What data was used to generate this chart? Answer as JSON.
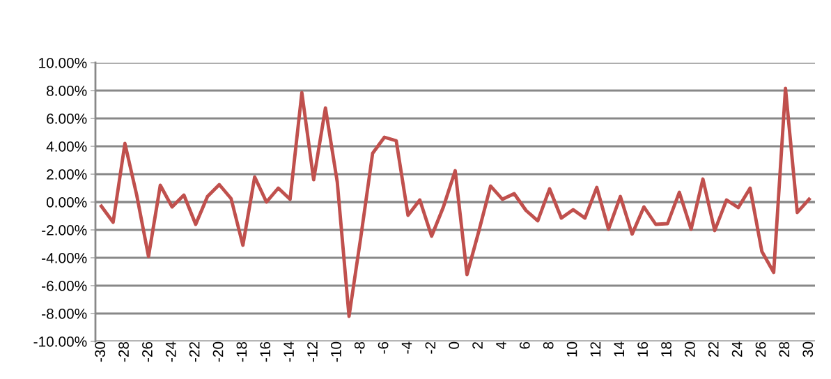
{
  "chart_data": {
    "type": "line",
    "categories": [
      "-30",
      null,
      "-28",
      null,
      "-26",
      null,
      "-24",
      null,
      "-22",
      null,
      "-20",
      null,
      "-18",
      null,
      "-16",
      null,
      "-14",
      null,
      "-12",
      null,
      "-10",
      null,
      "-8",
      null,
      "-6",
      null,
      "-4",
      null,
      "-2",
      null,
      "0",
      null,
      "2",
      null,
      "4",
      null,
      "6",
      null,
      "8",
      null,
      "10",
      null,
      "12",
      null,
      "14",
      null,
      "16",
      null,
      "18",
      null,
      "20",
      null,
      "22",
      null,
      "24",
      null,
      "26",
      null,
      "28",
      null,
      "30"
    ],
    "series": [
      {
        "color": "#c0504d",
        "values": [
          -0.3,
          -1.45,
          4.2,
          0.5,
          -3.9,
          1.2,
          -0.35,
          0.5,
          -1.6,
          0.4,
          1.25,
          0.25,
          -3.1,
          1.8,
          0.0,
          1.0,
          0.2,
          7.85,
          1.6,
          6.75,
          1.45,
          -8.2,
          -2.5,
          3.5,
          4.65,
          4.4,
          -0.95,
          0.15,
          -2.45,
          -0.35,
          2.25,
          -5.2,
          -2.1,
          1.15,
          0.2,
          0.6,
          -0.6,
          -1.35,
          0.95,
          -1.15,
          -0.55,
          -1.15,
          1.05,
          -1.95,
          0.4,
          -2.3,
          -0.35,
          -1.6,
          -1.55,
          0.7,
          -1.95,
          1.65,
          -2.05,
          0.15,
          -0.4,
          1.0,
          -3.55,
          -5.05,
          8.15,
          -0.75,
          0.2
        ]
      }
    ],
    "ylim": [
      -10,
      10
    ],
    "yticks": [
      {
        "value": -10,
        "label": "-10.00%"
      },
      {
        "value": -8,
        "label": "-8.00%"
      },
      {
        "value": -6,
        "label": "-6.00%"
      },
      {
        "value": -4,
        "label": "-4.00%"
      },
      {
        "value": -2,
        "label": "-2.00%"
      },
      {
        "value": 0,
        "label": "0.00%"
      },
      {
        "value": 2,
        "label": "2.00%"
      },
      {
        "value": 4,
        "label": "4.00%"
      },
      {
        "value": 6,
        "label": "6.00%"
      },
      {
        "value": 8,
        "label": "8.00%"
      },
      {
        "value": 10,
        "label": "10.00%"
      }
    ],
    "grid": "y",
    "marker": "none",
    "line_style": "solid"
  }
}
